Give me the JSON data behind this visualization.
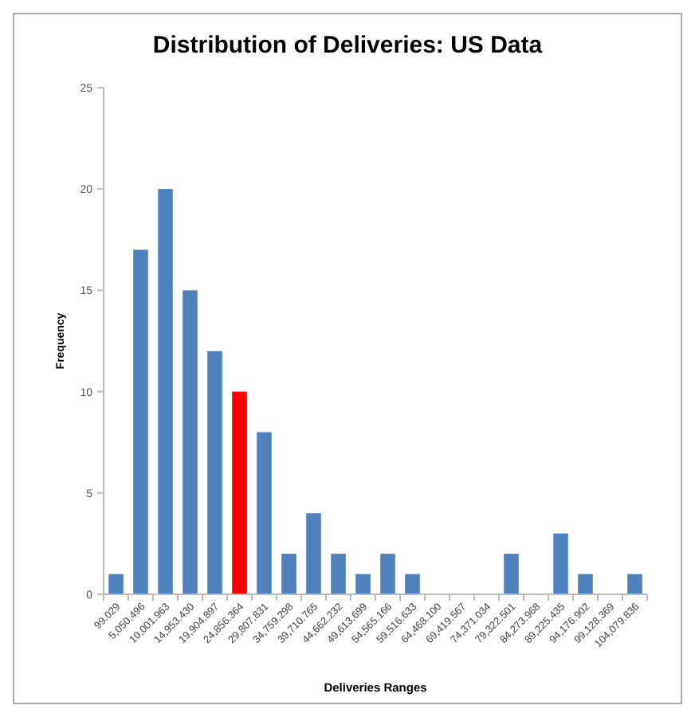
{
  "chart_data": {
    "type": "bar",
    "title": "Distribution of Deliveries: US Data",
    "xlabel": "Deliveries Ranges",
    "ylabel": "Frequency",
    "categories": [
      "99.029",
      "5,050.496",
      "10,001.963",
      "14,953.430",
      "19,904.897",
      "24,856.364",
      "29,807.831",
      "34,759.298",
      "39,710.765",
      "44,662.232",
      "49,613.699",
      "54,565.166",
      "59,516.633",
      "64,468.100",
      "69,419.567",
      "74,371.034",
      "79,322.501",
      "84,273.968",
      "89,225.435",
      "94,176.902",
      "99,128.369",
      "104,079.836"
    ],
    "values": [
      1,
      17,
      20,
      15,
      12,
      10,
      8,
      2,
      4,
      2,
      1,
      2,
      1,
      0,
      0,
      0,
      2,
      0,
      3,
      1,
      0,
      1
    ],
    "colors": [
      "#4f81bd",
      "#4f81bd",
      "#4f81bd",
      "#4f81bd",
      "#4f81bd",
      "#ff0000",
      "#4f81bd",
      "#4f81bd",
      "#4f81bd",
      "#4f81bd",
      "#4f81bd",
      "#4f81bd",
      "#4f81bd",
      "#4f81bd",
      "#4f81bd",
      "#4f81bd",
      "#4f81bd",
      "#4f81bd",
      "#4f81bd",
      "#4f81bd",
      "#4f81bd",
      "#4f81bd"
    ],
    "ylim": [
      0,
      25
    ],
    "yticks": [
      0,
      5,
      10,
      15,
      20,
      25
    ],
    "grid": false
  }
}
